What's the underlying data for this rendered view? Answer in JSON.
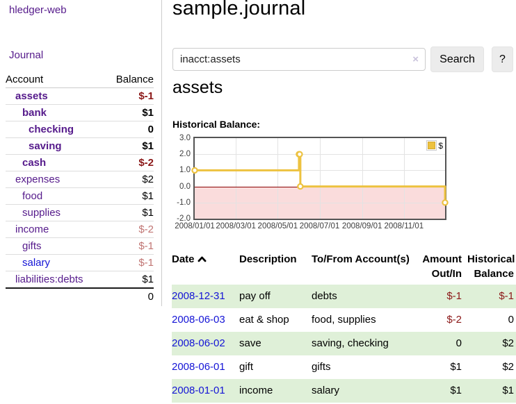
{
  "colors": {
    "link_visited_purple": "#551a8b",
    "link_blue": "#1414d6",
    "negative_strong_red": "#8b1717",
    "negative_soft_red": "#c17573",
    "row_highlight_green": "#dff0d8",
    "series_gold": "#edc240",
    "chart_negative_region_pink": "#fadcdc",
    "chart_zero_line_dark_red": "#8b0000"
  },
  "sidebar": {
    "brand": "hledger-web",
    "nav": [
      {
        "label": "Journal"
      }
    ],
    "accounts_table": {
      "headers": [
        "Account",
        "Balance"
      ],
      "rows": [
        {
          "account": "assets",
          "balance": "$-1",
          "indent": 0,
          "bold": true,
          "negative": "strong",
          "link": "visited"
        },
        {
          "account": "bank",
          "balance": "$1",
          "indent": 1,
          "bold": true,
          "negative": null,
          "link": "visited"
        },
        {
          "account": "checking",
          "balance": "0",
          "indent": 2,
          "bold": true,
          "negative": null,
          "link": "visited"
        },
        {
          "account": "saving",
          "balance": "$1",
          "indent": 2,
          "bold": true,
          "negative": null,
          "link": "visited"
        },
        {
          "account": "cash",
          "balance": "$-2",
          "indent": 1,
          "bold": true,
          "negative": "strong",
          "link": "visited"
        },
        {
          "account": "expenses",
          "balance": "$2",
          "indent": 0,
          "bold": false,
          "negative": null,
          "link": "visited"
        },
        {
          "account": "food",
          "balance": "$1",
          "indent": 1,
          "bold": false,
          "negative": null,
          "link": "visited"
        },
        {
          "account": "supplies",
          "balance": "$1",
          "indent": 1,
          "bold": false,
          "negative": null,
          "link": "visited"
        },
        {
          "account": "income",
          "balance": "$-2",
          "indent": 0,
          "bold": false,
          "negative": "soft",
          "link": "visited"
        },
        {
          "account": "gifts",
          "balance": "$-1",
          "indent": 1,
          "bold": false,
          "negative": "soft",
          "link": "visited"
        },
        {
          "account": "salary",
          "balance": "$-1",
          "indent": 1,
          "bold": false,
          "negative": "soft",
          "link": "unvisited"
        },
        {
          "account": "liabilities:debts",
          "balance": "$1",
          "indent": 0,
          "bold": false,
          "negative": null,
          "link": "visited"
        }
      ],
      "total": "0"
    }
  },
  "main": {
    "title": "sample.journal",
    "search": {
      "value": "inacct:assets",
      "clear_icon": "×",
      "search_button": "Search",
      "help_button": "?"
    },
    "account_heading": "assets",
    "chart_label": "Historical Balance:",
    "register": {
      "headers": [
        "Date",
        "Description",
        "To/From Account(s)",
        "Amount Out/In",
        "Historical Balance"
      ],
      "sort": {
        "column": "Date",
        "direction": "ascending"
      },
      "rows": [
        {
          "date": "2008-12-31",
          "description": "pay off",
          "accounts": "debts",
          "amount": "$-1",
          "amount_negative": true,
          "balance": "$-1",
          "balance_negative": true,
          "highlight": true
        },
        {
          "date": "2008-06-03",
          "description": "eat & shop",
          "accounts": "food, supplies",
          "amount": "$-2",
          "amount_negative": true,
          "balance": "0",
          "balance_negative": false,
          "highlight": false
        },
        {
          "date": "2008-06-02",
          "description": "save",
          "accounts": "saving, checking",
          "amount": "0",
          "amount_negative": false,
          "balance": "$2",
          "balance_negative": false,
          "highlight": true
        },
        {
          "date": "2008-06-01",
          "description": "gift",
          "accounts": "gifts",
          "amount": "$1",
          "amount_negative": false,
          "balance": "$2",
          "balance_negative": false,
          "highlight": false
        },
        {
          "date": "2008-01-01",
          "description": "income",
          "accounts": "salary",
          "amount": "$1",
          "amount_negative": false,
          "balance": "$1",
          "balance_negative": false,
          "highlight": true
        }
      ]
    }
  },
  "chart_data": {
    "type": "line",
    "title": "Historical Balance:",
    "step": true,
    "series": [
      {
        "name": "$",
        "color": "#edc240",
        "points": [
          {
            "date": "2008-01-01",
            "day": 0,
            "value": 1
          },
          {
            "date": "2008-06-01",
            "day": 152,
            "value": 2
          },
          {
            "date": "2008-06-02",
            "day": 153,
            "value": 2
          },
          {
            "date": "2008-06-03",
            "day": 154,
            "value": 0
          },
          {
            "date": "2008-12-31",
            "day": 365,
            "value": -1
          }
        ]
      }
    ],
    "x_ticks": [
      "2008/01/01",
      "2008/03/01",
      "2008/05/01",
      "2008/07/01",
      "2008/09/01",
      "2008/11/01"
    ],
    "x_tick_days": [
      0,
      60,
      121,
      182,
      244,
      305
    ],
    "y_ticks": [
      3.0,
      2.0,
      1.0,
      0.0,
      -1.0,
      -2.0
    ],
    "y_tick_labels": [
      "3.0",
      "2.0",
      "1.0",
      "0.0",
      "-1.0",
      "-2.0"
    ],
    "ylim": [
      -2,
      3
    ],
    "xlim_days": [
      0,
      365
    ],
    "grid": true,
    "negative_region_fill": "#fadcdc",
    "zero_line_color": "#8b0000",
    "legend": {
      "label": "$",
      "position": "top-right"
    }
  }
}
